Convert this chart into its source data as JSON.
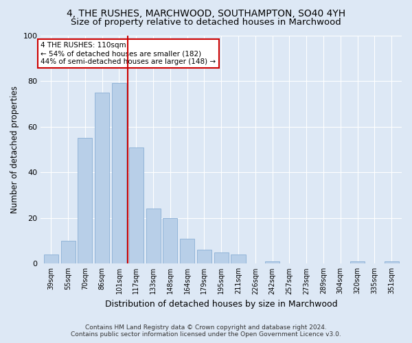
{
  "title": "4, THE RUSHES, MARCHWOOD, SOUTHAMPTON, SO40 4YH",
  "subtitle": "Size of property relative to detached houses in Marchwood",
  "xlabel": "Distribution of detached houses by size in Marchwood",
  "ylabel": "Number of detached properties",
  "footer_line1": "Contains HM Land Registry data © Crown copyright and database right 2024.",
  "footer_line2": "Contains public sector information licensed under the Open Government Licence v3.0.",
  "categories": [
    "39sqm",
    "55sqm",
    "70sqm",
    "86sqm",
    "101sqm",
    "117sqm",
    "133sqm",
    "148sqm",
    "164sqm",
    "179sqm",
    "195sqm",
    "211sqm",
    "226sqm",
    "242sqm",
    "257sqm",
    "273sqm",
    "289sqm",
    "304sqm",
    "320sqm",
    "335sqm",
    "351sqm"
  ],
  "values": [
    4,
    10,
    55,
    75,
    79,
    51,
    24,
    20,
    11,
    6,
    5,
    4,
    0,
    1,
    0,
    0,
    0,
    0,
    1,
    0,
    1
  ],
  "bar_color": "#b8cfe8",
  "bar_edge_color": "#92b4d8",
  "vline_x": 4.5,
  "vline_color": "#cc0000",
  "ylim": [
    0,
    100
  ],
  "annotation_text": "4 THE RUSHES: 110sqm\n← 54% of detached houses are smaller (182)\n44% of semi-detached houses are larger (148) →",
  "annotation_box_color": "#ffffff",
  "annotation_box_edge": "#cc0000",
  "background_color": "#dde8f5",
  "plot_bg_color": "#dde8f5",
  "title_fontsize": 10,
  "subtitle_fontsize": 9.5,
  "xlabel_fontsize": 9,
  "ylabel_fontsize": 8.5,
  "annotation_fontsize": 7.5
}
